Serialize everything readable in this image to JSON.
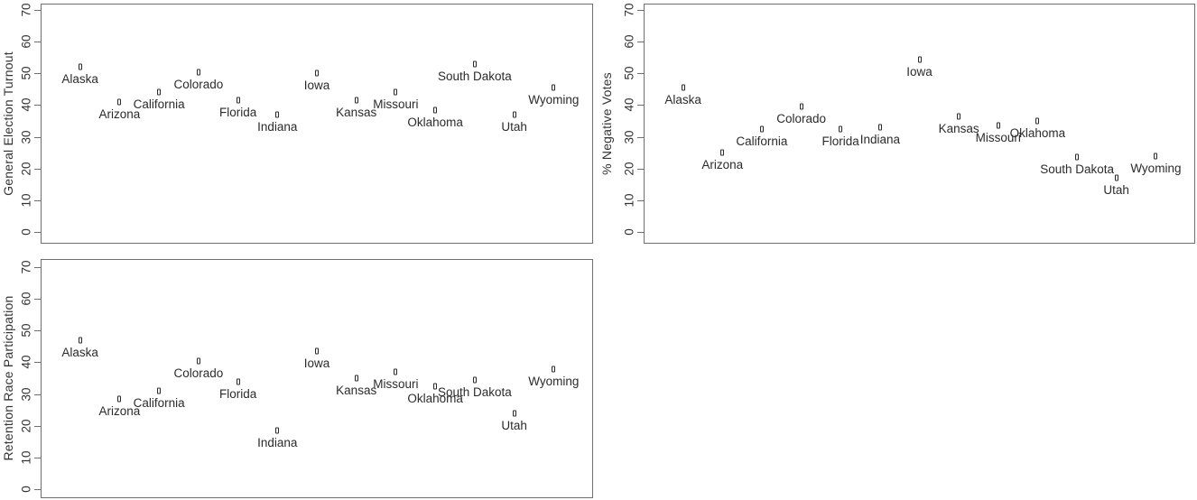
{
  "chart_data": [
    {
      "id": "general-election-turnout",
      "type": "scatter",
      "title": "",
      "xlabel": "",
      "ylabel": "General Election Turnout",
      "ylim": [
        0,
        70
      ],
      "yticks": [
        0,
        10,
        20,
        30,
        40,
        50,
        60,
        70
      ],
      "grid": false,
      "legend": "none",
      "marker": "open-square",
      "label_position": "below-point",
      "categories": [
        "Alaska",
        "Arizona",
        "California",
        "Colorado",
        "Florida",
        "Indiana",
        "Iowa",
        "Kansas",
        "Missouri",
        "Oklahoma",
        "South Dakota",
        "Utah",
        "Wyoming"
      ],
      "values": [
        52,
        41,
        44,
        50.5,
        41.5,
        37,
        50,
        41.5,
        44,
        38.5,
        53,
        37,
        45.5
      ]
    },
    {
      "id": "percent-negative-votes",
      "type": "scatter",
      "title": "",
      "xlabel": "",
      "ylabel": "% Negative Votes",
      "ylim": [
        0,
        70
      ],
      "yticks": [
        0,
        10,
        20,
        30,
        40,
        50,
        60,
        70
      ],
      "grid": false,
      "legend": "none",
      "marker": "open-square",
      "label_position": "below-point",
      "categories": [
        "Alaska",
        "Arizona",
        "California",
        "Colorado",
        "Florida",
        "Indiana",
        "Iowa",
        "Kansas",
        "Missouri",
        "Oklahoma",
        "South Dakota",
        "Utah",
        "Wyoming"
      ],
      "values": [
        45.5,
        25,
        32.5,
        39.5,
        32.5,
        33,
        54.5,
        36.5,
        33.5,
        35,
        23.5,
        17,
        24
      ]
    },
    {
      "id": "retention-race-participation",
      "type": "scatter",
      "title": "",
      "xlabel": "",
      "ylabel": "Retention Race Participation",
      "ylim": [
        0,
        70
      ],
      "yticks": [
        0,
        10,
        20,
        30,
        40,
        50,
        60,
        70
      ],
      "grid": false,
      "legend": "none",
      "marker": "open-square",
      "label_position": "below-point",
      "categories": [
        "Alaska",
        "Arizona",
        "California",
        "Colorado",
        "Florida",
        "Indiana",
        "Iowa",
        "Kansas",
        "Missouri",
        "Oklahoma",
        "South Dakota",
        "Utah",
        "Wyoming"
      ],
      "values": [
        47,
        28.5,
        31,
        40.5,
        34,
        18.5,
        43.5,
        35,
        37,
        32.5,
        34.5,
        24,
        38
      ]
    }
  ],
  "colors": {
    "background": "#ffffff",
    "frame": "#6f6f6f",
    "marker_border": "#2b2b2b",
    "marker_fill": "#f7f7f7",
    "text": "#2e2e2e"
  }
}
